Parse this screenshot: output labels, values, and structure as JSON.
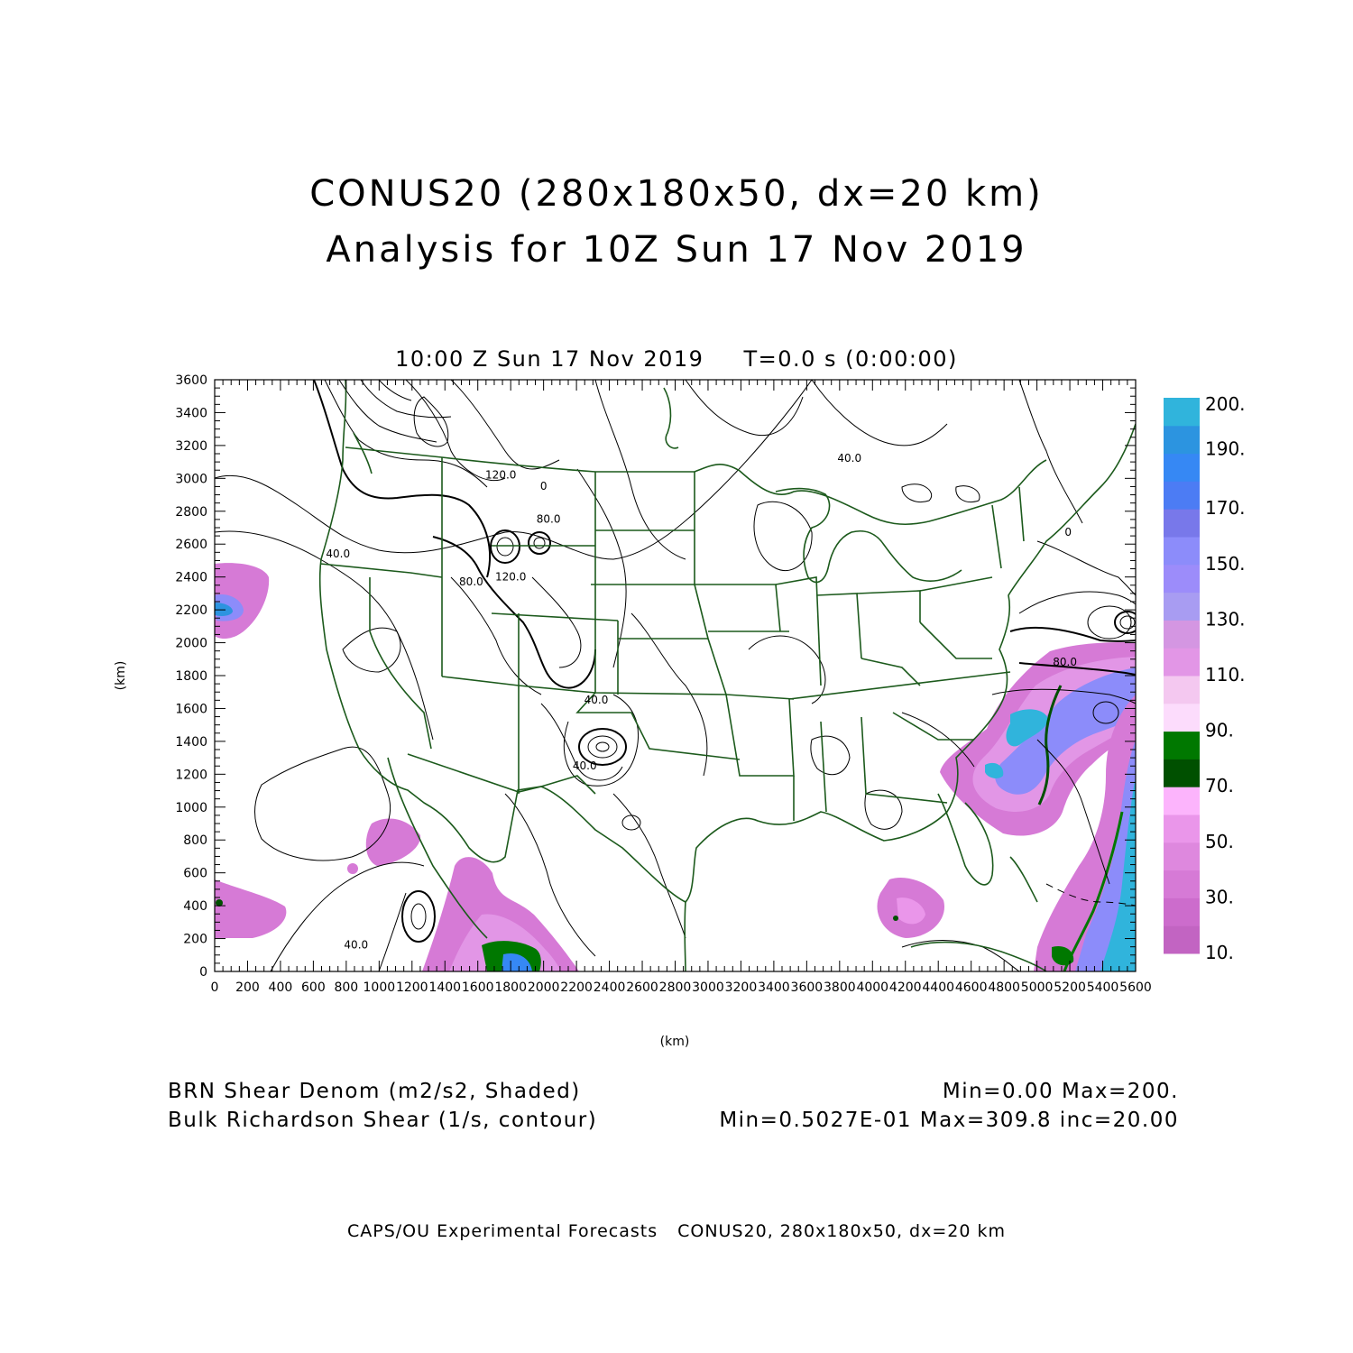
{
  "header": {
    "title_line1": "CONUS20 (280x180x50, dx=20 km)",
    "title_line2": "Analysis for 10Z Sun 17 Nov 2019"
  },
  "subtitle": {
    "valid_time": "10:00 Z Sun 17 Nov 2019",
    "forecast_time": "T=0.0 s (0:00:00)"
  },
  "map": {
    "x_axis": {
      "label": "(km)",
      "range": [
        0,
        5600
      ],
      "ticks": [
        "0",
        "200",
        "400",
        "600",
        "800",
        "1000",
        "1200",
        "1400",
        "1600",
        "1800",
        "2000",
        "2200",
        "2400",
        "2600",
        "2800",
        "3000",
        "3200",
        "3400",
        "3600",
        "3800",
        "4000",
        "4200",
        "4400",
        "4600",
        "4800",
        "5000",
        "5200",
        "5400",
        "5600"
      ]
    },
    "y_axis": {
      "label": "(km)",
      "range": [
        0,
        3600
      ],
      "ticks": [
        "0",
        "200",
        "400",
        "600",
        "800",
        "1000",
        "1200",
        "1400",
        "1600",
        "1800",
        "2000",
        "2200",
        "2400",
        "2600",
        "2800",
        "3000",
        "3200",
        "3400",
        "3600"
      ]
    },
    "contour_labels": [
      {
        "text": "40.0",
        "x": 750,
        "y": 2520
      },
      {
        "text": "120.0",
        "x": 1740,
        "y": 3000
      },
      {
        "text": "0",
        "x": 2000,
        "y": 2930
      },
      {
        "text": "80.0",
        "x": 2030,
        "y": 2730
      },
      {
        "text": "80.0",
        "x": 1560,
        "y": 2350
      },
      {
        "text": "120.0",
        "x": 1800,
        "y": 2380
      },
      {
        "text": "40.0",
        "x": 2320,
        "y": 1630
      },
      {
        "text": "40.0",
        "x": 2250,
        "y": 1230
      },
      {
        "text": "40.0",
        "x": 860,
        "y": 140
      },
      {
        "text": "40.0",
        "x": 3860,
        "y": 3100
      },
      {
        "text": "80.0",
        "x": 5170,
        "y": 1860
      },
      {
        "text": "0",
        "x": 5190,
        "y": 2650
      }
    ]
  },
  "colorbar": {
    "bins": [
      {
        "value": "10.",
        "color": "#c264c2"
      },
      {
        "value": "20",
        "color": "#cc6ccc"
      },
      {
        "value": "30.",
        "color": "#d67ad6"
      },
      {
        "value": "40",
        "color": "#de88de"
      },
      {
        "value": "50.",
        "color": "#ea96ea"
      },
      {
        "value": "60",
        "color": "#fcb4fc"
      },
      {
        "value": "70.",
        "color": "#005000"
      },
      {
        "value": "80",
        "color": "#007800"
      },
      {
        "value": "90.",
        "color": "#fcdcfc"
      },
      {
        "value": "100",
        "color": "#f4c8f0"
      },
      {
        "value": "110.",
        "color": "#e296e6"
      },
      {
        "value": "120",
        "color": "#d496e2"
      },
      {
        "value": "130.",
        "color": "#a89cf2"
      },
      {
        "value": "140",
        "color": "#9c8cfa"
      },
      {
        "value": "150.",
        "color": "#8c8cfa"
      },
      {
        "value": "160",
        "color": "#7878ea"
      },
      {
        "value": "170.",
        "color": "#4c7cf4"
      },
      {
        "value": "180",
        "color": "#3688f4"
      },
      {
        "value": "190.",
        "color": "#2c94e0"
      },
      {
        "value": "200.",
        "color": "#30b4dc"
      }
    ],
    "labeled": [
      "10.",
      "30.",
      "50.",
      "70.",
      "90.",
      "110.",
      "130.",
      "150.",
      "170.",
      "190.",
      "200."
    ]
  },
  "fields": {
    "shaded_name": "BRN Shear Denom (m2/s2, Shaded)",
    "shaded_stats": "Min=0.00 Max=200.",
    "contour_name": "Bulk Richardson Shear (1/s, contour)",
    "contour_stats": "Min=0.5027E-01 Max=309.8 inc=20.00"
  },
  "footer": {
    "source": "CAPS/OU Experimental Forecasts",
    "domain": "CONUS20, 280x180x50, dx=20 km"
  }
}
